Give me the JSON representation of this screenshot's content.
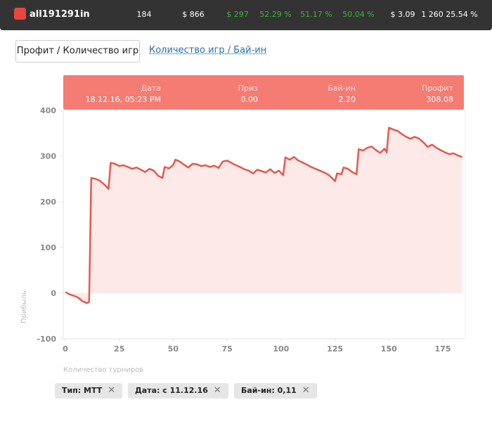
{
  "header": {
    "player": "all191291in",
    "stats": [
      {
        "text": "184"
      },
      {
        "text": "$ 866"
      },
      {
        "text": "$ 297",
        "color": "#3cb43c"
      },
      {
        "text": "52.29 %",
        "color": "#3cb43c"
      },
      {
        "text": "51.17 %",
        "color": "#3cb43c"
      },
      {
        "text": "50.04 %",
        "color": "#3cb43c"
      },
      {
        "text": "$ 3.09"
      },
      {
        "text": "1 260"
      },
      {
        "text": "25.54 %"
      }
    ]
  },
  "tabs": [
    "Профит / Количество игр",
    "Количество игр / Бай-ин"
  ],
  "tooltip": {
    "labels": [
      "Дата",
      "Приз",
      "Бай-ин",
      "Профит"
    ],
    "values": [
      "18.12.16, 05:23 PM",
      "0.00",
      "2.20",
      "308.08"
    ]
  },
  "chart_data": {
    "type": "line",
    "ylabel": "Прибыль",
    "xlabel": "Количество турниров",
    "x": [
      0,
      2,
      4,
      6,
      8,
      10,
      11,
      12,
      14,
      16,
      18,
      19,
      20,
      21,
      23,
      25,
      27,
      29,
      31,
      33,
      35,
      37,
      39,
      41,
      43,
      45,
      46,
      48,
      50,
      51,
      53,
      55,
      57,
      59,
      61,
      63,
      65,
      67,
      69,
      71,
      73,
      75,
      77,
      79,
      81,
      83,
      85,
      87,
      89,
      91,
      93,
      95,
      97,
      99,
      101,
      102,
      104,
      106,
      108,
      110,
      112,
      114,
      116,
      118,
      120,
      122,
      124,
      125,
      126,
      128,
      129,
      131,
      133,
      135,
      136,
      138,
      140,
      142,
      144,
      146,
      148,
      149,
      150,
      152,
      154,
      156,
      158,
      160,
      162,
      164,
      166,
      168,
      170,
      172,
      174,
      176,
      178,
      180,
      182,
      184
    ],
    "series": [
      {
        "color": "#e8574d",
        "fill_color": "#fde9e8",
        "values": [
          2,
          -3,
          -6,
          -10,
          -18,
          -22,
          -19,
          252,
          250,
          246,
          238,
          233,
          228,
          285,
          283,
          278,
          280,
          276,
          272,
          275,
          270,
          265,
          272,
          268,
          257,
          252,
          276,
          273,
          280,
          292,
          288,
          281,
          275,
          283,
          282,
          278,
          280,
          276,
          279,
          274,
          288,
          290,
          285,
          280,
          276,
          271,
          268,
          262,
          270,
          267,
          264,
          271,
          263,
          268,
          258,
          297,
          292,
          298,
          290,
          286,
          281,
          276,
          272,
          268,
          264,
          259,
          250,
          245,
          262,
          260,
          275,
          272,
          265,
          260,
          315,
          312,
          318,
          321,
          313,
          307,
          316,
          308,
          362,
          358,
          355,
          348,
          342,
          338,
          342,
          338,
          330,
          320,
          325,
          318,
          313,
          308,
          304,
          306,
          301,
          298
        ]
      }
    ],
    "xlim": [
      0,
      185
    ],
    "ylim": [
      -100,
      400
    ],
    "xticks": [
      0,
      25,
      50,
      75,
      100,
      125,
      150,
      175
    ],
    "yticks": [
      -100,
      0,
      100,
      200,
      300,
      400
    ]
  },
  "filters": [
    "Тип: MTT",
    "Дата: с 11.12.16",
    "Бай-ин: 0,11"
  ]
}
